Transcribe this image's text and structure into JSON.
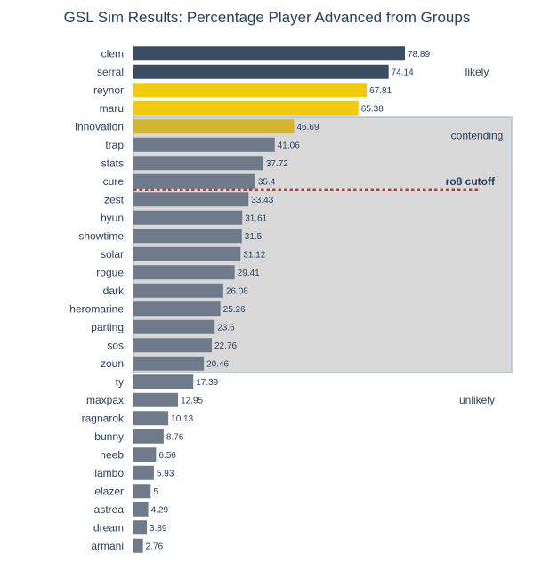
{
  "chart_data": {
    "type": "bar",
    "orientation": "horizontal",
    "title": "GSL Sim Results: Percentage Player Advanced from Groups",
    "xlabel": "",
    "ylabel": "",
    "xlim": [
      0,
      100
    ],
    "categories": [
      "clem",
      "serral",
      "reynor",
      "maru",
      "innovation",
      "trap",
      "stats",
      "cure",
      "zest",
      "byun",
      "showtime",
      "solar",
      "rogue",
      "dark",
      "heromarine",
      "parting",
      "sos",
      "zoun",
      "ty",
      "maxpax",
      "ragnarok",
      "bunny",
      "neeb",
      "lambo",
      "elazer",
      "astrea",
      "dream",
      "armani"
    ],
    "values": [
      78.89,
      74.14,
      67.81,
      65.38,
      46.69,
      41.06,
      37.72,
      35.4,
      33.43,
      31.61,
      31.5,
      31.12,
      29.41,
      26.08,
      25.26,
      23.6,
      22.76,
      20.46,
      17.39,
      12.95,
      10.13,
      8.76,
      6.56,
      5.93,
      5,
      4.29,
      3.89,
      2.76
    ],
    "value_labels": [
      "78.89",
      "74.14",
      "67.81",
      "65.38",
      "46.69",
      "41.06",
      "37.72",
      "35.4",
      "33.43",
      "31.61",
      "31.5",
      "31.12",
      "29.41",
      "26.08",
      "25.26",
      "23.6",
      "22.76",
      "20.46",
      "17.39",
      "12.95",
      "10.13",
      "8.76",
      "6.56",
      "5.93",
      "5",
      "4.29",
      "3.89",
      "2.76"
    ],
    "bar_colors": [
      "#3b4d63",
      "#3b4d63",
      "#f2cb11",
      "#f2cb11",
      "#d4b430",
      "#6f7b8a",
      "#6f7b8a",
      "#6f7b8a",
      "#6f7b8a",
      "#6f7b8a",
      "#6f7b8a",
      "#6f7b8a",
      "#6f7b8a",
      "#6f7b8a",
      "#6f7b8a",
      "#6f7b8a",
      "#6f7b8a",
      "#6f7b8a",
      "#6f7b8a",
      "#6f7b8a",
      "#6f7b8a",
      "#6f7b8a",
      "#6f7b8a",
      "#6f7b8a",
      "#6f7b8a",
      "#6f7b8a",
      "#6f7b8a",
      "#6f7b8a"
    ],
    "regions": [
      {
        "label": "likely",
        "from_index": 0,
        "to_index": 3,
        "shaded": false
      },
      {
        "label": "contending",
        "from_index": 4,
        "to_index": 17,
        "shaded": true
      },
      {
        "label": "unlikely",
        "from_index": 18,
        "to_index": 27,
        "shaded": false
      }
    ],
    "cutoff": {
      "label": "ro8 cutoff",
      "after_index": 7,
      "color": "#9c4a4a"
    },
    "colors": {
      "text": "#2a3f5f",
      "shade": "#d9d9d9",
      "shade_border": "#b8bfca"
    }
  }
}
